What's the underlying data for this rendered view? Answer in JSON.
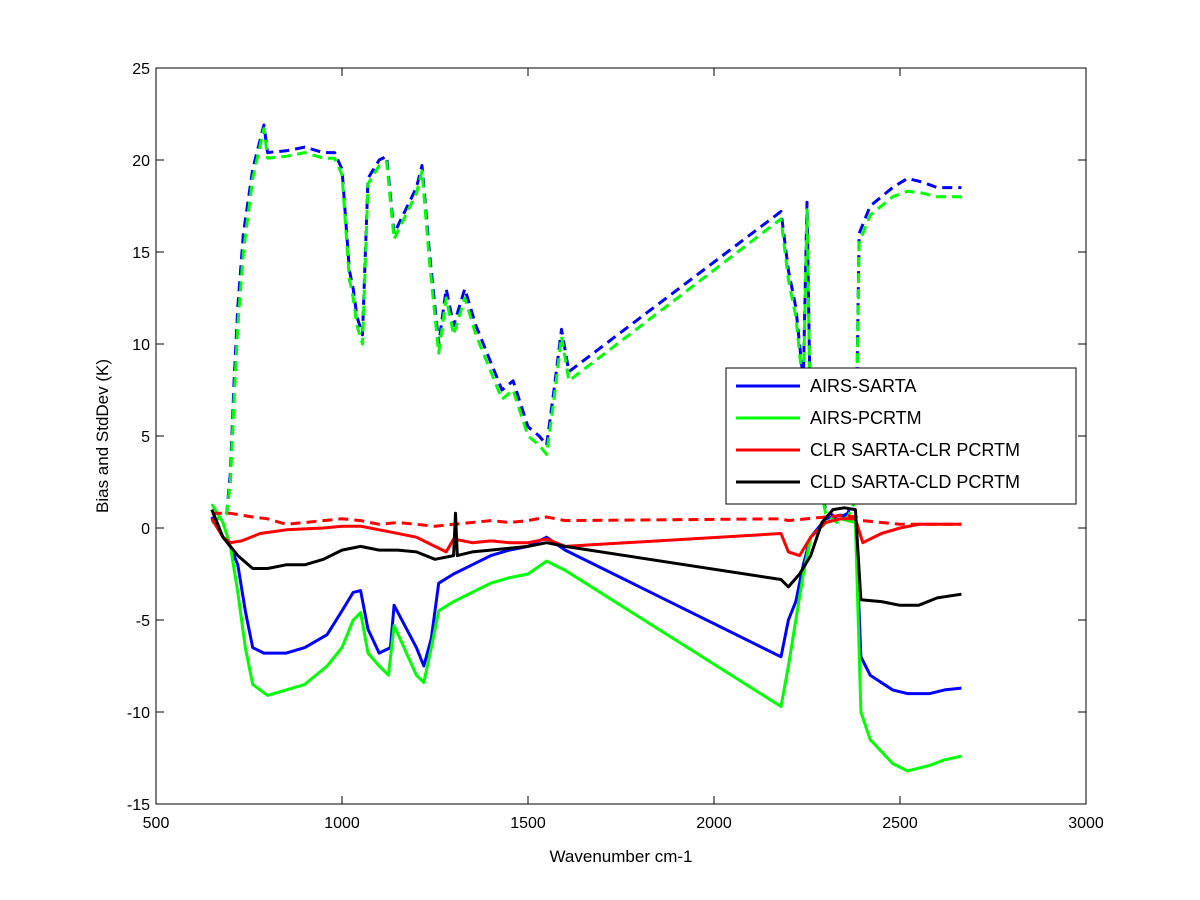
{
  "chart_data": {
    "type": "line",
    "xlabel": "Wavenumber cm-1",
    "ylabel": "Bias and StdDev (K)",
    "xlim": [
      500,
      3000
    ],
    "ylim": [
      -15,
      25
    ],
    "xticks": [
      500,
      1000,
      1500,
      2000,
      2500,
      3000
    ],
    "yticks": [
      -15,
      -10,
      -5,
      0,
      5,
      10,
      15,
      20,
      25
    ],
    "xtick_labels": [
      "500",
      "1000",
      "1500",
      "2000",
      "2500",
      "3000"
    ],
    "ytick_labels": [
      "-15",
      "-10",
      "-5",
      "0",
      "5",
      "10",
      "15",
      "20",
      "25"
    ],
    "grid": false,
    "legend_position": "right",
    "series": [
      {
        "name": "AIRS-SARTA",
        "color": "#0000ff",
        "bias": [
          [
            650,
            0.6
          ],
          [
            680,
            -0.5
          ],
          [
            700,
            -1
          ],
          [
            720,
            -2
          ],
          [
            740,
            -4.5
          ],
          [
            760,
            -6.5
          ],
          [
            790,
            -6.8
          ],
          [
            850,
            -6.8
          ],
          [
            900,
            -6.5
          ],
          [
            960,
            -5.8
          ],
          [
            1000,
            -4.5
          ],
          [
            1030,
            -3.5
          ],
          [
            1050,
            -3.4
          ],
          [
            1070,
            -5.5
          ],
          [
            1100,
            -6.8
          ],
          [
            1130,
            -6.5
          ],
          [
            1140,
            -4.2
          ],
          [
            1200,
            -6.5
          ],
          [
            1220,
            -7.5
          ],
          [
            1240,
            -6
          ],
          [
            1260,
            -3
          ],
          [
            1300,
            -2.5
          ],
          [
            1350,
            -2
          ],
          [
            1400,
            -1.5
          ],
          [
            1450,
            -1.2
          ],
          [
            1500,
            -1
          ],
          [
            1550,
            -0.5
          ],
          [
            1600,
            -1.2
          ],
          [
            2180,
            -7
          ],
          [
            2200,
            -5
          ],
          [
            2220,
            -4
          ],
          [
            2240,
            -2
          ],
          [
            2260,
            -0.5
          ],
          [
            2300,
            0.5
          ],
          [
            2340,
            0.7
          ],
          [
            2380,
            0.5
          ],
          [
            2395,
            -7
          ],
          [
            2420,
            -8
          ],
          [
            2480,
            -8.8
          ],
          [
            2520,
            -9
          ],
          [
            2580,
            -9
          ],
          [
            2620,
            -8.8
          ],
          [
            2665,
            -8.7
          ]
        ],
        "stddev": [
          [
            650,
            0.3
          ],
          [
            690,
            0.8
          ],
          [
            700,
            3
          ],
          [
            710,
            8
          ],
          [
            720,
            12
          ],
          [
            735,
            16
          ],
          [
            760,
            19.5
          ],
          [
            790,
            21.9
          ],
          [
            800,
            20.4
          ],
          [
            850,
            20.5
          ],
          [
            900,
            20.7
          ],
          [
            950,
            20.4
          ],
          [
            980,
            20.4
          ],
          [
            1000,
            19.5
          ],
          [
            1020,
            14
          ],
          [
            1030,
            13
          ],
          [
            1040,
            11.5
          ],
          [
            1055,
            10.5
          ],
          [
            1070,
            19
          ],
          [
            1100,
            20
          ],
          [
            1120,
            20.2
          ],
          [
            1140,
            16
          ],
          [
            1200,
            18.5
          ],
          [
            1215,
            19.7
          ],
          [
            1235,
            15
          ],
          [
            1260,
            10
          ],
          [
            1280,
            13
          ],
          [
            1300,
            11
          ],
          [
            1330,
            13
          ],
          [
            1360,
            11
          ],
          [
            1400,
            9
          ],
          [
            1430,
            7.5
          ],
          [
            1460,
            8
          ],
          [
            1500,
            5.5
          ],
          [
            1530,
            5
          ],
          [
            1550,
            4.5
          ],
          [
            1570,
            7.5
          ],
          [
            1590,
            10.8
          ],
          [
            1610,
            8.5
          ],
          [
            2180,
            17.2
          ],
          [
            2200,
            14
          ],
          [
            2220,
            12
          ],
          [
            2240,
            8
          ],
          [
            2250,
            17.7
          ],
          [
            2260,
            5
          ],
          [
            2280,
            3
          ],
          [
            2300,
            1
          ],
          [
            2330,
            0.5
          ],
          [
            2360,
            0.8
          ],
          [
            2380,
            2
          ],
          [
            2390,
            16
          ],
          [
            2420,
            17.5
          ],
          [
            2480,
            18.5
          ],
          [
            2520,
            19
          ],
          [
            2560,
            18.8
          ],
          [
            2600,
            18.5
          ],
          [
            2665,
            18.5
          ]
        ]
      },
      {
        "name": "AIRS-PCRTM",
        "color": "#00ff00",
        "bias": [
          [
            650,
            1.3
          ],
          [
            680,
            0.3
          ],
          [
            700,
            -1
          ],
          [
            720,
            -3.5
          ],
          [
            740,
            -6.5
          ],
          [
            760,
            -8.5
          ],
          [
            800,
            -9.1
          ],
          [
            850,
            -8.8
          ],
          [
            900,
            -8.5
          ],
          [
            960,
            -7.5
          ],
          [
            1000,
            -6.5
          ],
          [
            1030,
            -5
          ],
          [
            1050,
            -4.6
          ],
          [
            1070,
            -6.8
          ],
          [
            1100,
            -7.5
          ],
          [
            1125,
            -8
          ],
          [
            1140,
            -5.3
          ],
          [
            1200,
            -8
          ],
          [
            1220,
            -8.4
          ],
          [
            1240,
            -6.5
          ],
          [
            1260,
            -4.5
          ],
          [
            1300,
            -4
          ],
          [
            1350,
            -3.5
          ],
          [
            1400,
            -3
          ],
          [
            1450,
            -2.7
          ],
          [
            1500,
            -2.5
          ],
          [
            1550,
            -1.8
          ],
          [
            1600,
            -2.3
          ],
          [
            2180,
            -9.7
          ],
          [
            2200,
            -7.5
          ],
          [
            2220,
            -5
          ],
          [
            2240,
            -2.5
          ],
          [
            2260,
            -0.5
          ],
          [
            2300,
            0.3
          ],
          [
            2340,
            0.5
          ],
          [
            2380,
            0.3
          ],
          [
            2395,
            -10
          ],
          [
            2420,
            -11.5
          ],
          [
            2480,
            -12.8
          ],
          [
            2520,
            -13.2
          ],
          [
            2580,
            -12.9
          ],
          [
            2620,
            -12.6
          ],
          [
            2665,
            -12.4
          ]
        ],
        "stddev": [
          [
            650,
            0.3
          ],
          [
            690,
            0.8
          ],
          [
            700,
            2.5
          ],
          [
            710,
            7
          ],
          [
            720,
            11
          ],
          [
            735,
            15
          ],
          [
            760,
            19
          ],
          [
            790,
            21.7
          ],
          [
            800,
            20.1
          ],
          [
            850,
            20.2
          ],
          [
            900,
            20.4
          ],
          [
            950,
            20.1
          ],
          [
            980,
            20.1
          ],
          [
            1000,
            19.2
          ],
          [
            1020,
            13.5
          ],
          [
            1030,
            12.5
          ],
          [
            1040,
            11
          ],
          [
            1055,
            10
          ],
          [
            1070,
            18.7
          ],
          [
            1100,
            19.7
          ],
          [
            1120,
            19.9
          ],
          [
            1140,
            15.7
          ],
          [
            1200,
            18.2
          ],
          [
            1215,
            19.4
          ],
          [
            1235,
            14.5
          ],
          [
            1260,
            9.5
          ],
          [
            1280,
            12.5
          ],
          [
            1300,
            10.5
          ],
          [
            1330,
            12.5
          ],
          [
            1360,
            10.5
          ],
          [
            1400,
            8.5
          ],
          [
            1430,
            7
          ],
          [
            1460,
            7.5
          ],
          [
            1500,
            5
          ],
          [
            1530,
            4.5
          ],
          [
            1550,
            4
          ],
          [
            1570,
            7
          ],
          [
            1590,
            10.4
          ],
          [
            1610,
            8
          ],
          [
            2180,
            16.8
          ],
          [
            2200,
            13.5
          ],
          [
            2220,
            11.5
          ],
          [
            2240,
            7.5
          ],
          [
            2250,
            17.3
          ],
          [
            2260,
            4.5
          ],
          [
            2280,
            2.8
          ],
          [
            2300,
            0.8
          ],
          [
            2330,
            0.3
          ],
          [
            2360,
            0.6
          ],
          [
            2380,
            1.5
          ],
          [
            2390,
            15.5
          ],
          [
            2420,
            17
          ],
          [
            2480,
            18
          ],
          [
            2520,
            18.3
          ],
          [
            2560,
            18.2
          ],
          [
            2600,
            18
          ],
          [
            2665,
            18
          ]
        ]
      },
      {
        "name": "CLR SARTA-CLR PCRTM",
        "color": "#ff0000",
        "bias": [
          [
            650,
            0.5
          ],
          [
            680,
            -0.5
          ],
          [
            700,
            -0.8
          ],
          [
            730,
            -0.7
          ],
          [
            780,
            -0.3
          ],
          [
            850,
            -0.1
          ],
          [
            950,
            0
          ],
          [
            1000,
            0.1
          ],
          [
            1050,
            0.1
          ],
          [
            1100,
            -0.1
          ],
          [
            1200,
            -0.5
          ],
          [
            1250,
            -1
          ],
          [
            1280,
            -1.3
          ],
          [
            1300,
            -0.6
          ],
          [
            1350,
            -0.8
          ],
          [
            1400,
            -0.7
          ],
          [
            1450,
            -0.8
          ],
          [
            1500,
            -0.8
          ],
          [
            1550,
            -0.6
          ],
          [
            1600,
            -1
          ],
          [
            2180,
            -0.3
          ],
          [
            2200,
            -1.3
          ],
          [
            2230,
            -1.5
          ],
          [
            2260,
            -0.5
          ],
          [
            2300,
            0.3
          ],
          [
            2340,
            0.5
          ],
          [
            2380,
            0.5
          ],
          [
            2400,
            -0.8
          ],
          [
            2450,
            -0.3
          ],
          [
            2500,
            0
          ],
          [
            2550,
            0.2
          ],
          [
            2600,
            0.2
          ],
          [
            2665,
            0.2
          ]
        ],
        "stddev": [
          [
            650,
            0.8
          ],
          [
            700,
            0.8
          ],
          [
            760,
            0.6
          ],
          [
            800,
            0.5
          ],
          [
            850,
            0.2
          ],
          [
            900,
            0.3
          ],
          [
            950,
            0.4
          ],
          [
            1000,
            0.5
          ],
          [
            1050,
            0.4
          ],
          [
            1100,
            0.2
          ],
          [
            1150,
            0.3
          ],
          [
            1200,
            0.2
          ],
          [
            1250,
            0.1
          ],
          [
            1300,
            0.2
          ],
          [
            1350,
            0.3
          ],
          [
            1400,
            0.4
          ],
          [
            1450,
            0.3
          ],
          [
            1500,
            0.4
          ],
          [
            1550,
            0.6
          ],
          [
            1600,
            0.4
          ],
          [
            2180,
            0.5
          ],
          [
            2200,
            0.4
          ],
          [
            2250,
            0.5
          ],
          [
            2300,
            0.6
          ],
          [
            2350,
            0.7
          ],
          [
            2380,
            0.6
          ],
          [
            2400,
            0.4
          ],
          [
            2450,
            0.3
          ],
          [
            2500,
            0.2
          ],
          [
            2550,
            0.2
          ],
          [
            2600,
            0.2
          ],
          [
            2665,
            0.2
          ]
        ]
      },
      {
        "name": "CLD SARTA-CLD PCRTM",
        "color": "#000000",
        "bias": [
          [
            650,
            1
          ],
          [
            680,
            -0.5
          ],
          [
            700,
            -1
          ],
          [
            720,
            -1.5
          ],
          [
            760,
            -2.2
          ],
          [
            800,
            -2.2
          ],
          [
            850,
            -2
          ],
          [
            900,
            -2
          ],
          [
            950,
            -1.7
          ],
          [
            1000,
            -1.2
          ],
          [
            1050,
            -1
          ],
          [
            1100,
            -1.2
          ],
          [
            1150,
            -1.2
          ],
          [
            1200,
            -1.3
          ],
          [
            1250,
            -1.7
          ],
          [
            1300,
            -1.5
          ],
          [
            1305,
            0.8
          ],
          [
            1310,
            -1.5
          ],
          [
            1350,
            -1.3
          ],
          [
            1400,
            -1.2
          ],
          [
            1450,
            -1.1
          ],
          [
            1500,
            -1
          ],
          [
            1550,
            -0.8
          ],
          [
            1600,
            -1
          ],
          [
            2180,
            -2.8
          ],
          [
            2200,
            -3.2
          ],
          [
            2230,
            -2.5
          ],
          [
            2260,
            -1.5
          ],
          [
            2290,
            0.3
          ],
          [
            2320,
            1
          ],
          [
            2350,
            1.1
          ],
          [
            2380,
            1
          ],
          [
            2395,
            -3.9
          ],
          [
            2450,
            -4
          ],
          [
            2500,
            -4.2
          ],
          [
            2550,
            -4.2
          ],
          [
            2600,
            -3.8
          ],
          [
            2665,
            -3.6
          ]
        ],
        "stddev": []
      }
    ]
  }
}
